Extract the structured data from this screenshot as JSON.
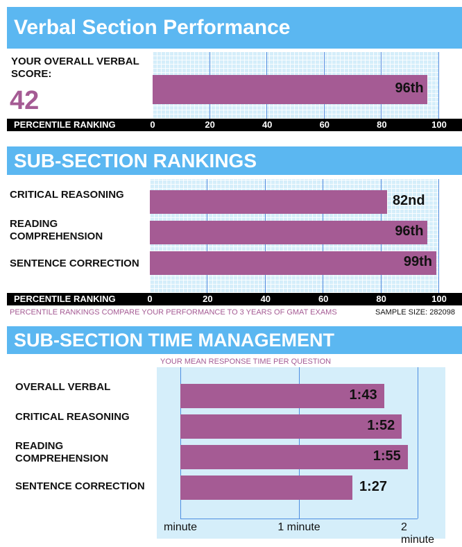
{
  "verbal": {
    "title": "Verbal Section Performance",
    "score_label": "YOUR OVERALL VERBAL SCORE:",
    "score": "42"
  },
  "subsection": {
    "title": "SUB-SECTION RANKINGS",
    "footnote": "PERCENTILE RANKINGS COMPARE YOUR PERFORMANCE TO 3 YEARS OF GMAT EXAMS",
    "sample_size": "SAMPLE SIZE: 282098"
  },
  "time": {
    "title": "SUB-SECTION TIME MANAGEMENT",
    "subtitle": "YOUR MEAN RESPONSE TIME PER QUESTION"
  },
  "colors": {
    "banner": "#5bb7f1",
    "bar": "#a55b94",
    "panel": "#d5eefa",
    "grid": "#5d8fe0"
  },
  "chart_data": [
    {
      "type": "bar",
      "orientation": "horizontal",
      "categories": [
        ""
      ],
      "values": [
        96
      ],
      "data_labels": [
        "96th"
      ],
      "xlabel": "PERCENTILE RANKING",
      "xlim": [
        0,
        100
      ],
      "xticks": [
        "0",
        "20",
        "40",
        "60",
        "80",
        "100"
      ],
      "grid": true
    },
    {
      "type": "bar",
      "orientation": "horizontal",
      "categories": [
        "CRITICAL REASONING",
        "READING COMPREHENSION",
        "SENTENCE CORRECTION"
      ],
      "values": [
        82,
        96,
        99
      ],
      "data_labels": [
        "82nd",
        "96th",
        "99th"
      ],
      "xlabel": "PERCENTILE RANKING",
      "xlim": [
        0,
        100
      ],
      "xticks": [
        "0",
        "20",
        "40",
        "60",
        "80",
        "100"
      ],
      "grid": true
    },
    {
      "type": "bar",
      "orientation": "horizontal",
      "title": "YOUR MEAN RESPONSE TIME PER QUESTION",
      "categories": [
        "OVERALL VERBAL",
        "CRITICAL REASONING",
        "READING COMPREHENSION",
        "SENTENCE CORRECTION"
      ],
      "values": [
        103,
        112,
        115,
        87
      ],
      "data_labels": [
        "1:43",
        "1:52",
        "1:55",
        "1:27"
      ],
      "unit": "seconds",
      "xlim": [
        0,
        120
      ],
      "xticks": [
        "minute",
        "1 minute",
        "2 minute"
      ],
      "grid": true
    }
  ]
}
